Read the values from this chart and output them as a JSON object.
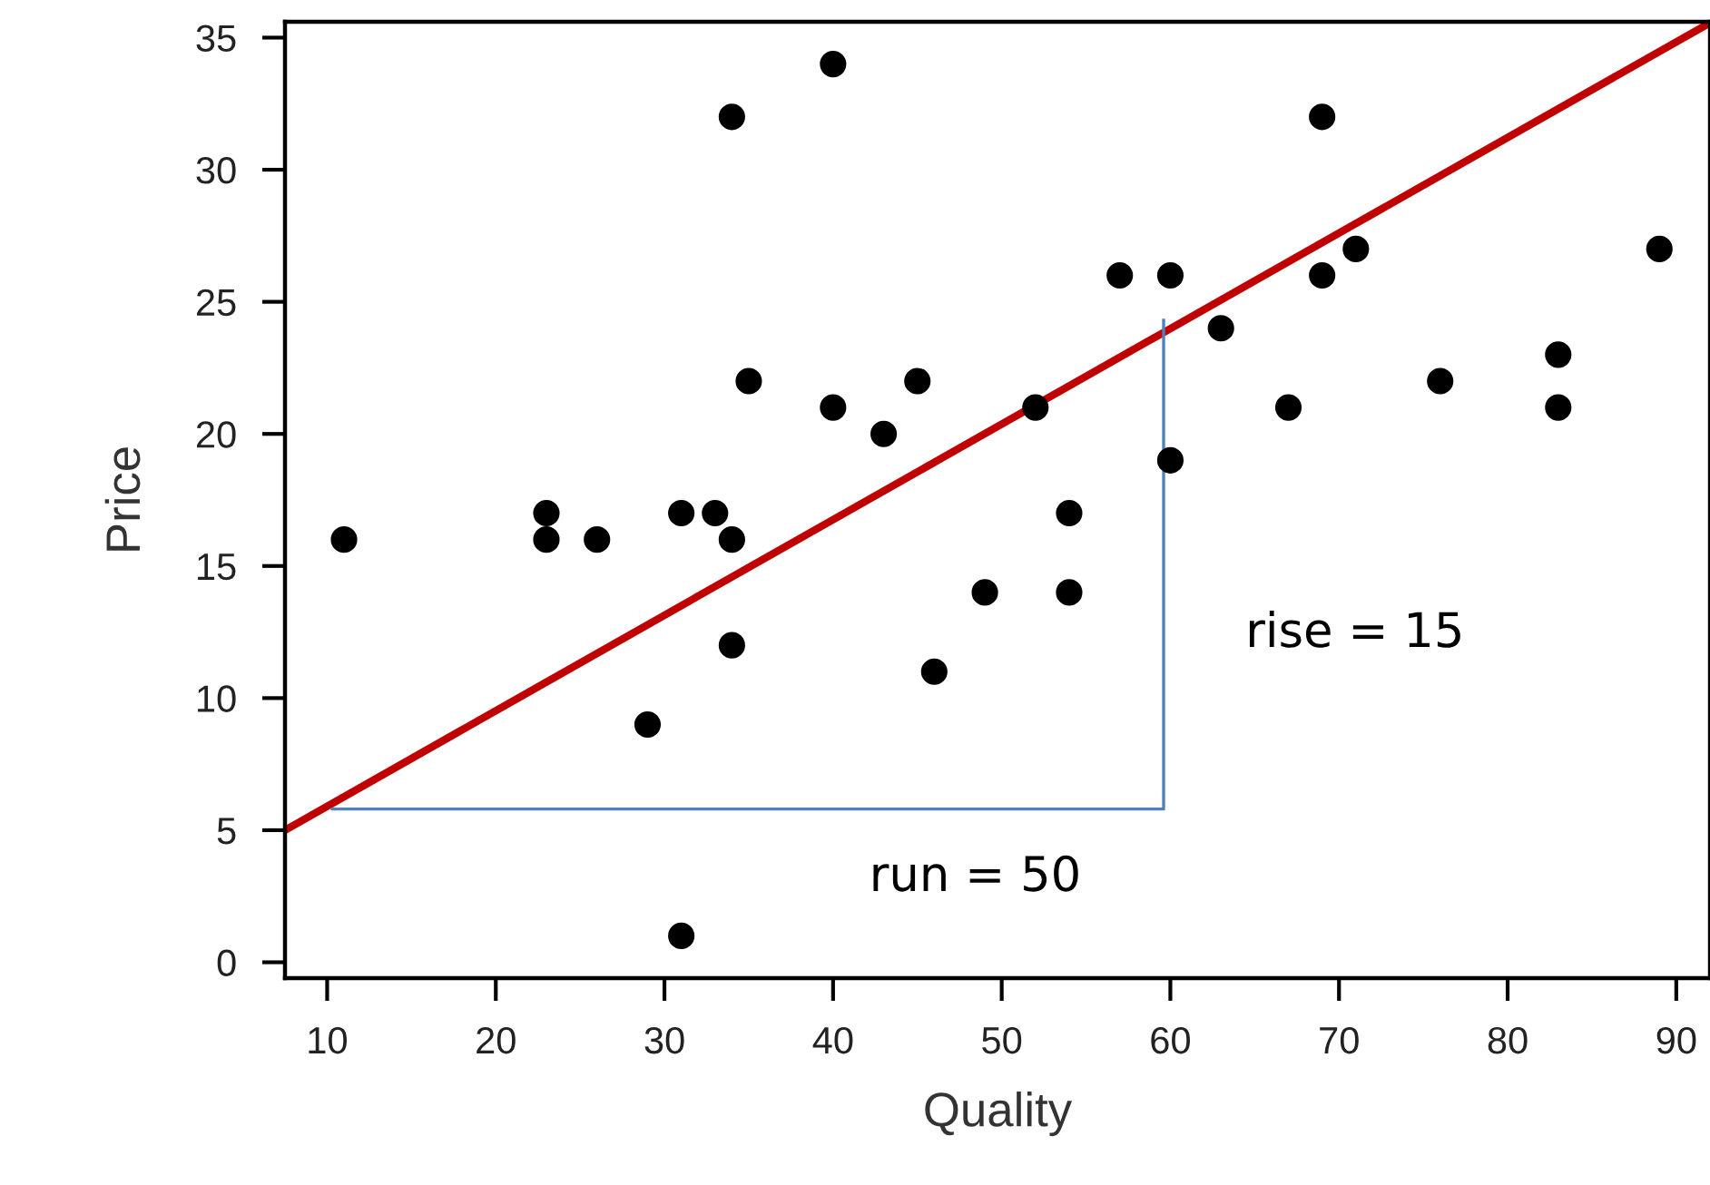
{
  "chart_data": {
    "type": "scatter",
    "xlabel": "Quality",
    "ylabel": "Price",
    "xlim": [
      7.5,
      92
    ],
    "ylim": [
      -0.6,
      35.6
    ],
    "xticks": [
      10,
      20,
      30,
      40,
      50,
      60,
      70,
      80,
      90
    ],
    "yticks": [
      0,
      5,
      10,
      15,
      20,
      25,
      30,
      35
    ],
    "grid": false,
    "legend": false,
    "series": [
      {
        "color": "#000000",
        "marker": "circle",
        "x": [
          11,
          23,
          23,
          26,
          29,
          31,
          31,
          33,
          34,
          34,
          34,
          35,
          40,
          40,
          43,
          45,
          46,
          49,
          52,
          54,
          54,
          57,
          60,
          60,
          63,
          67,
          69,
          69,
          71,
          76,
          83,
          83,
          89
        ],
        "values": [
          16,
          17,
          16,
          16,
          9,
          17,
          1,
          17,
          32,
          16,
          12,
          22,
          34,
          21,
          20,
          22,
          11,
          14,
          21,
          17,
          14,
          26,
          26,
          19,
          24,
          21,
          32,
          26,
          27,
          22,
          23,
          21,
          27
        ]
      },
      {
        "type": "line",
        "color": "#c00000",
        "marker": "none",
        "line_style": "solid",
        "x": [
          7.5,
          91.7
        ],
        "values": [
          5.0,
          35.45
        ]
      },
      {
        "type": "line",
        "color": "#4f81bd",
        "marker": "none",
        "line_style": "solid",
        "x": [
          10.3,
          59.6,
          59.6
        ],
        "values": [
          5.8,
          5.8,
          24.3
        ]
      }
    ],
    "annotations": [
      "rise = 15",
      "run = 50"
    ]
  }
}
